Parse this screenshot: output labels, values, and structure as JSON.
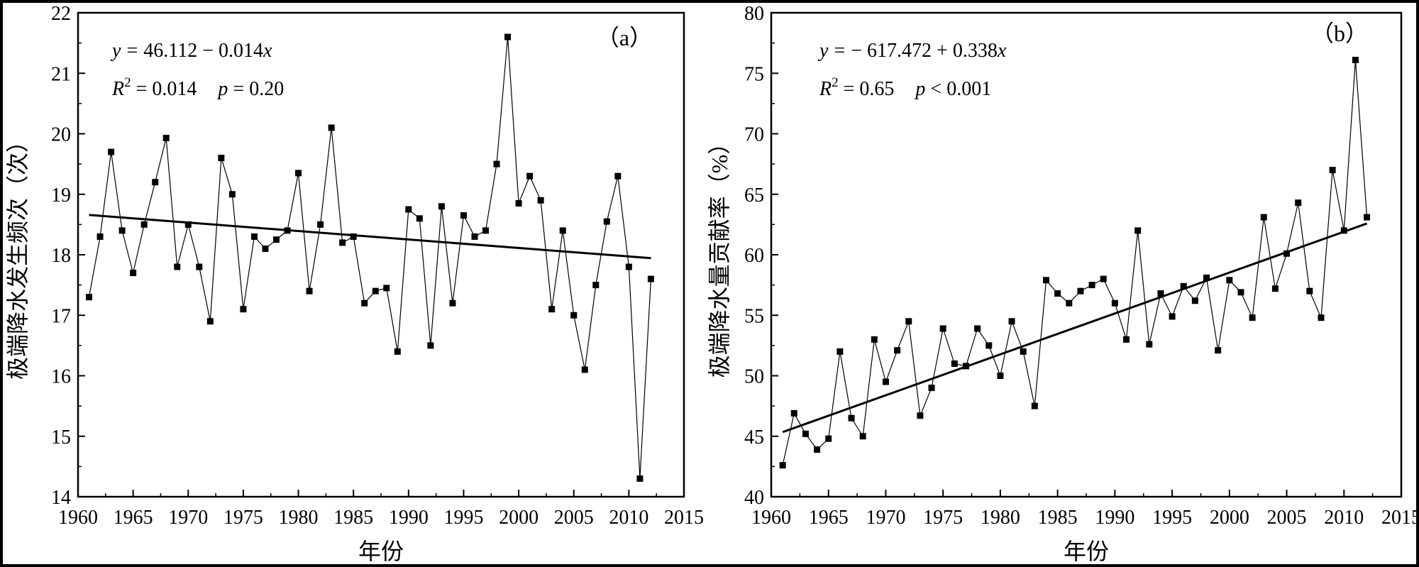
{
  "chart_data": [
    {
      "type": "line",
      "panel": "（a）",
      "xlabel": "年份",
      "ylabel": "极端降水发生频次（次）",
      "xlim": [
        1960,
        2015
      ],
      "ylim": [
        14,
        22
      ],
      "xticks": [
        1960,
        1965,
        1970,
        1975,
        1980,
        1985,
        1990,
        1995,
        2000,
        2005,
        2010,
        2015
      ],
      "yticks": [
        14,
        15,
        16,
        17,
        18,
        19,
        20,
        21,
        22
      ],
      "equation": {
        "y": "y",
        "eq": "=",
        "rhs": "46.112 − 0.014",
        "x": "x"
      },
      "stats": {
        "r": "R",
        "sup": "2",
        "r2_rhs": " = 0.014",
        "p": "p",
        "p_rhs": " = 0.20"
      },
      "trend": {
        "intercept": 46.112,
        "slope": -0.014
      },
      "series": [
        {
          "name": "frequency",
          "x": [
            1961,
            1962,
            1963,
            1964,
            1965,
            1966,
            1967,
            1968,
            1969,
            1970,
            1971,
            1972,
            1973,
            1974,
            1975,
            1976,
            1977,
            1978,
            1979,
            1980,
            1981,
            1982,
            1983,
            1984,
            1985,
            1986,
            1987,
            1988,
            1989,
            1990,
            1991,
            1992,
            1993,
            1994,
            1995,
            1996,
            1997,
            1998,
            1999,
            2000,
            2001,
            2002,
            2003,
            2004,
            2005,
            2006,
            2007,
            2008,
            2009,
            2010,
            2011,
            2012
          ],
          "values": [
            17.3,
            18.3,
            19.7,
            18.4,
            17.7,
            18.5,
            19.2,
            19.93,
            17.8,
            18.5,
            17.8,
            16.9,
            19.6,
            19.0,
            17.1,
            18.3,
            18.1,
            18.25,
            18.4,
            19.35,
            17.4,
            18.5,
            20.1,
            18.2,
            18.3,
            17.2,
            17.4,
            17.45,
            16.4,
            18.75,
            18.6,
            16.5,
            18.8,
            17.2,
            18.65,
            18.3,
            18.4,
            19.5,
            21.6,
            18.85,
            19.3,
            18.9,
            17.1,
            18.4,
            17.0,
            16.1,
            17.5,
            18.55,
            19.3,
            17.8,
            14.3,
            17.6
          ]
        }
      ]
    },
    {
      "type": "line",
      "panel": "（b）",
      "xlabel": "年份",
      "ylabel": "极端降水量贡献率（%）",
      "xlim": [
        1960,
        2015
      ],
      "ylim": [
        40,
        80
      ],
      "xticks": [
        1960,
        1965,
        1970,
        1975,
        1980,
        1985,
        1990,
        1995,
        2000,
        2005,
        2010,
        2015
      ],
      "yticks": [
        40,
        45,
        50,
        55,
        60,
        65,
        70,
        75,
        80
      ],
      "equation": {
        "y": "y",
        "eq": "=",
        "rhs": "− 617.472 + 0.338",
        "x": "x"
      },
      "stats": {
        "r": "R",
        "sup": "2",
        "r2_rhs": " = 0.65",
        "p": "p",
        "p_rhs": " < 0.001"
      },
      "trend": {
        "intercept": -617.472,
        "slope": 0.338
      },
      "series": [
        {
          "name": "contribution",
          "x": [
            1961,
            1962,
            1963,
            1964,
            1965,
            1966,
            1967,
            1968,
            1969,
            1970,
            1971,
            1972,
            1973,
            1974,
            1975,
            1976,
            1977,
            1978,
            1979,
            1980,
            1981,
            1982,
            1983,
            1984,
            1985,
            1986,
            1987,
            1988,
            1989,
            1990,
            1991,
            1992,
            1993,
            1994,
            1995,
            1996,
            1997,
            1998,
            1999,
            2000,
            2001,
            2002,
            2003,
            2004,
            2005,
            2006,
            2007,
            2008,
            2009,
            2010,
            2011,
            2012
          ],
          "values": [
            42.6,
            46.9,
            45.2,
            43.9,
            44.8,
            52.0,
            46.5,
            45.0,
            53.0,
            49.5,
            52.1,
            54.5,
            46.7,
            49.0,
            53.9,
            51.0,
            50.8,
            53.9,
            52.5,
            50.0,
            54.5,
            52.0,
            47.5,
            57.9,
            56.8,
            56.0,
            57.0,
            57.5,
            58.0,
            56.0,
            53.0,
            62.0,
            52.6,
            56.8,
            54.9,
            57.4,
            56.2,
            58.1,
            52.1,
            57.9,
            56.9,
            54.8,
            63.1,
            57.2,
            60.1,
            64.3,
            57.0,
            54.8,
            67.0,
            62.0,
            76.1,
            63.1
          ]
        }
      ]
    }
  ]
}
